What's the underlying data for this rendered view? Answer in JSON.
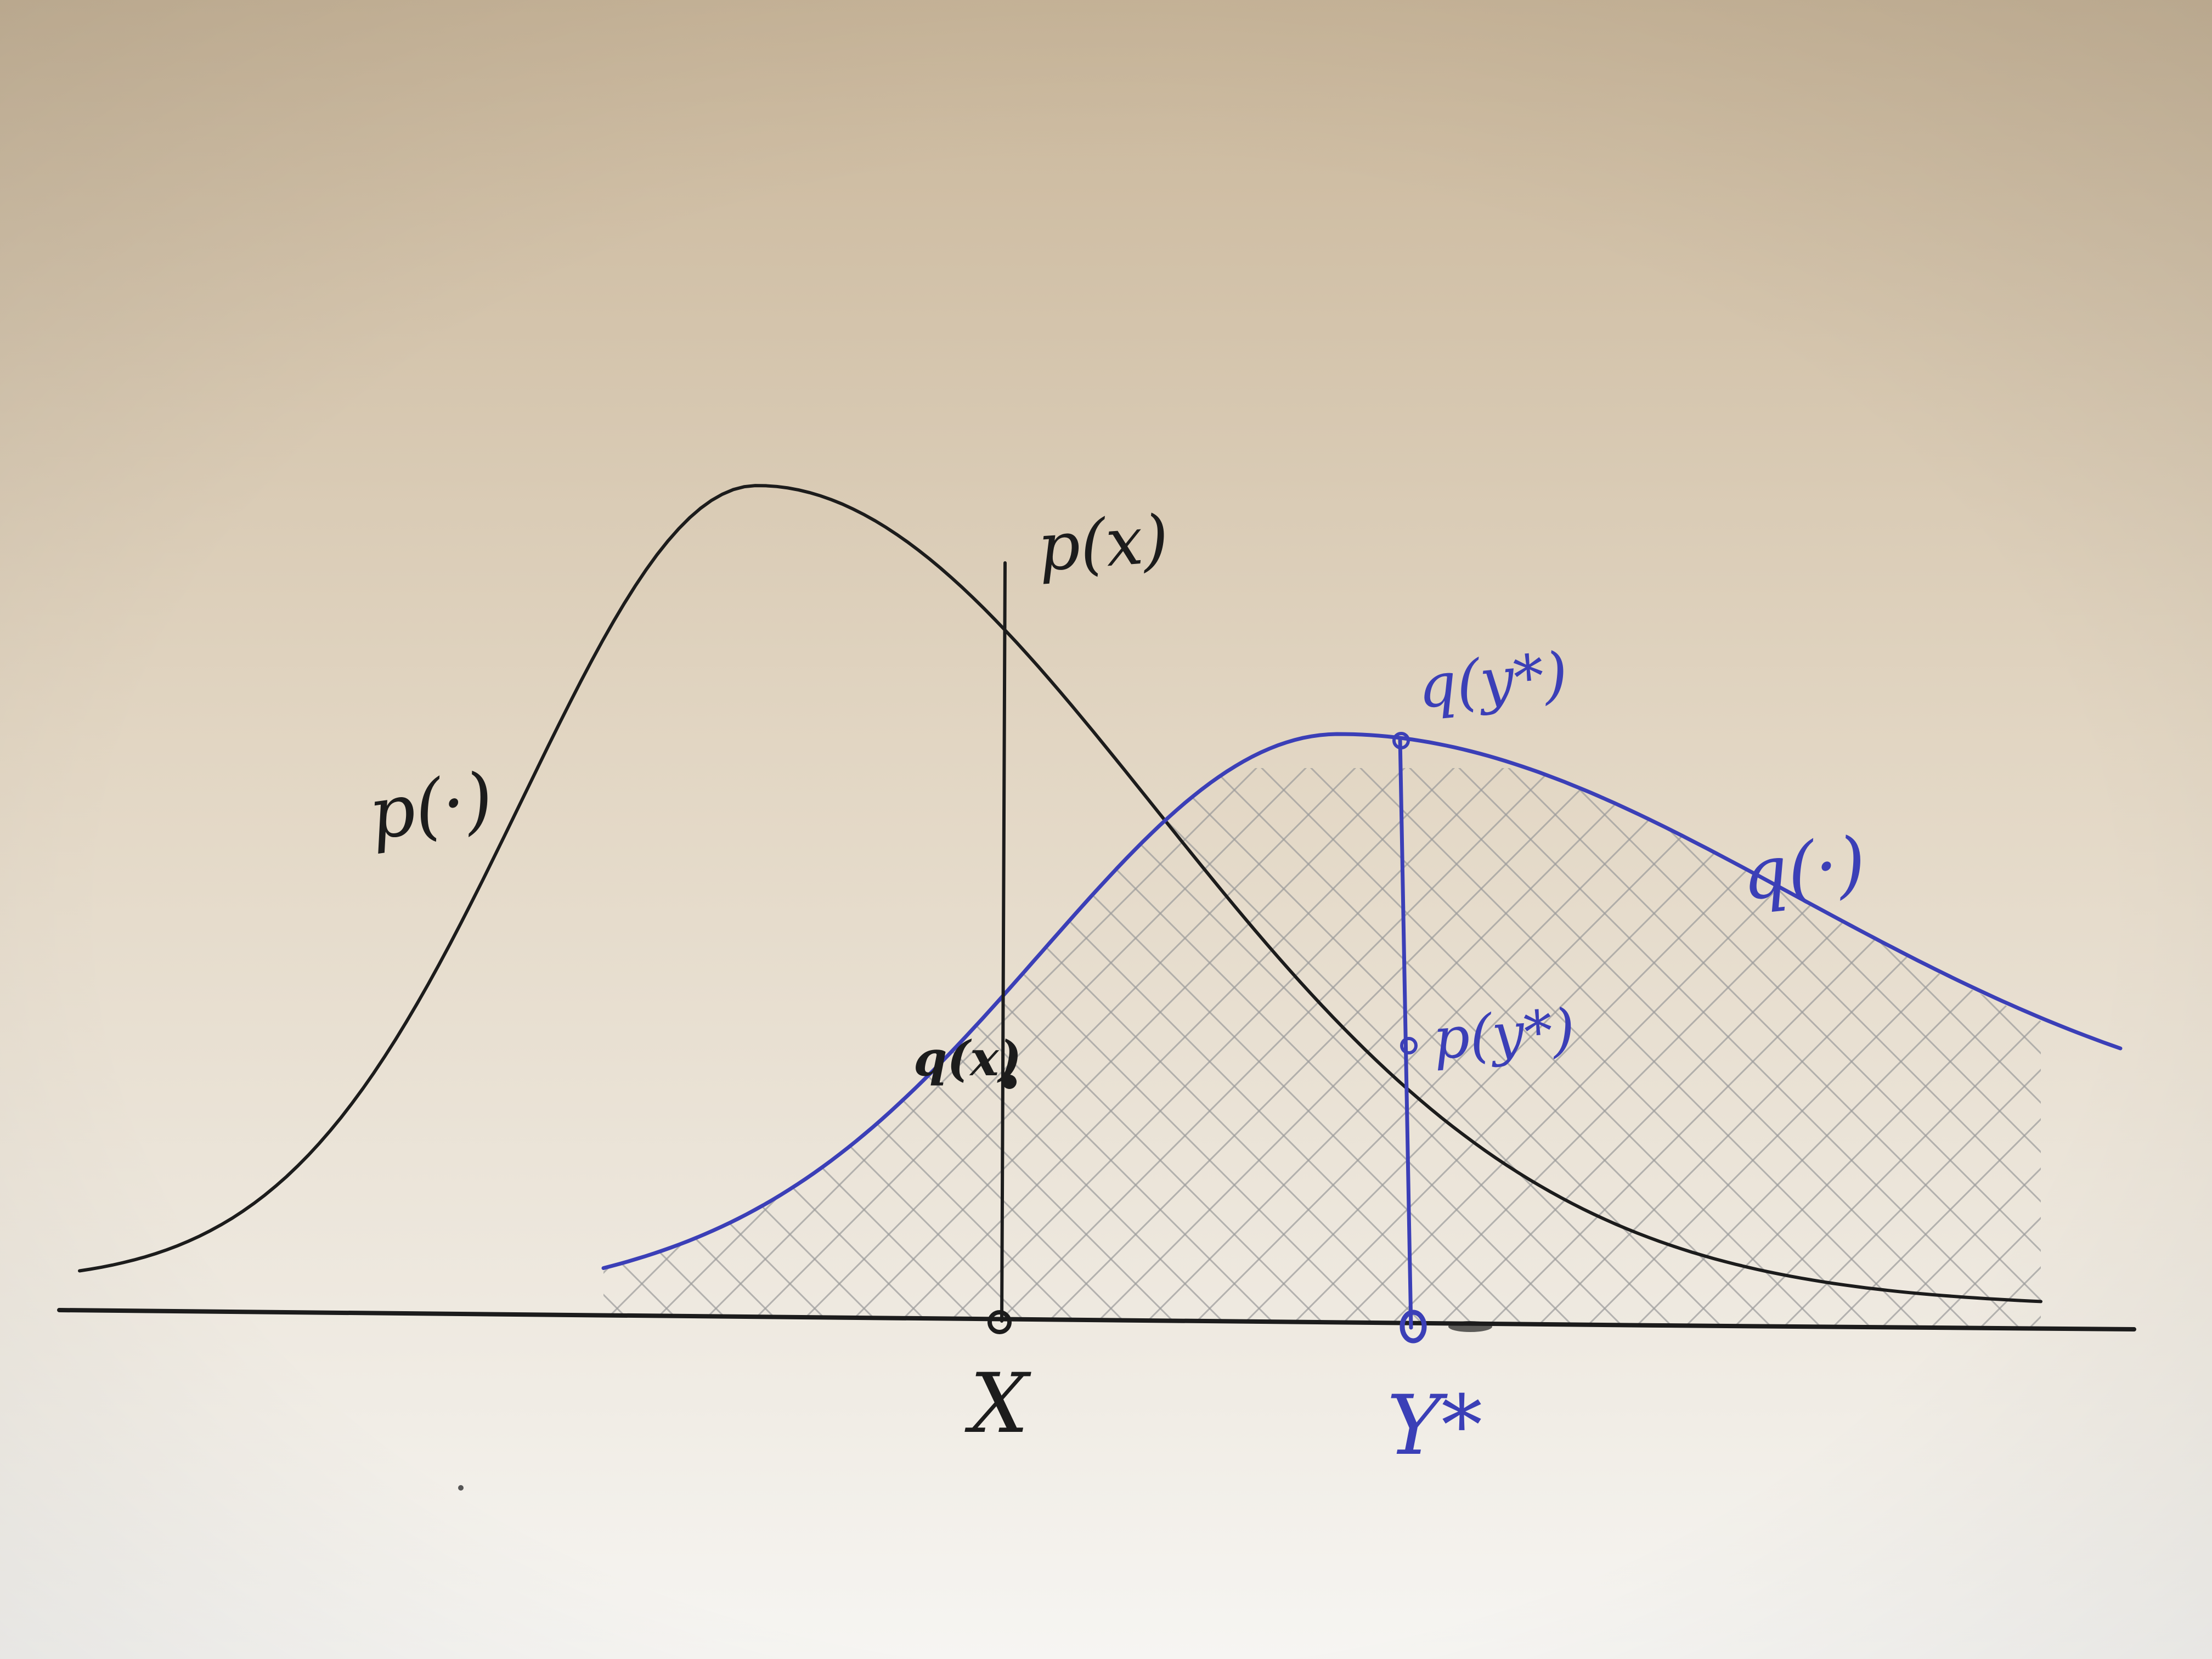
{
  "labels": {
    "p_curve": "p(·)",
    "q_curve": "q(·)",
    "p_x": "p(x)",
    "q_x": "q(x)",
    "q_ystar": "q(y*)",
    "p_ystar": "p(y*)",
    "x_point": "X",
    "ystar_point": "Y*"
  },
  "colors": {
    "paper_top": "#c9b69a",
    "paper_mid": "#e2d6c3",
    "paper_bottom": "#f6f5f2",
    "pencil": "#1c1c1c",
    "blue_ink": "#3b3fb7",
    "hatching": "#9a9a9a"
  }
}
